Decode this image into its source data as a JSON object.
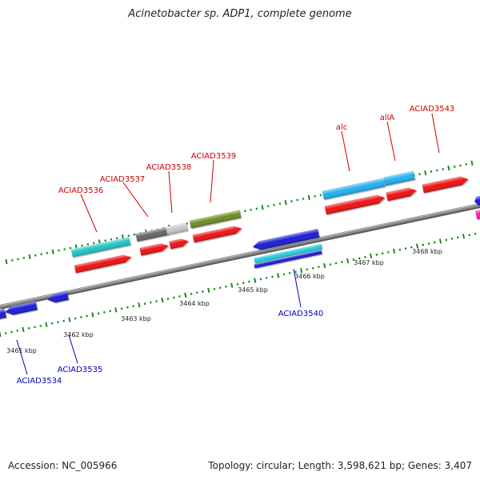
{
  "title": "Acinetobacter sp. ADP1, complete genome",
  "footer": {
    "accession": "Accession: NC_005966",
    "summary": "Topology: circular; Length: 3,598,621 bp; Genes: 3,407"
  },
  "colors": {
    "backbone": "#8a8a8a",
    "tick": "#1f8a1f",
    "forward_label": "#cc0000",
    "reverse_label": "#0000bb",
    "cds_red": "#ee1111",
    "cds_blue": "#1a1ad6",
    "cds_cyan": "#22ccdd",
    "cds_teal": "#1fc4c4",
    "cds_gray": "#666666",
    "cds_lightgray": "#c8c8c8",
    "cds_olive": "#6b8e23",
    "cds_sky": "#22b0f0",
    "cds_magenta": "#ee22aa"
  },
  "scale_labels": [
    "3461 kbp",
    "3462 kbp",
    "3463 kbp",
    "3464 kbp",
    "3465 kbp",
    "3466 kbp",
    "3467 kbp",
    "3468 kbp"
  ],
  "gene_labels": {
    "forward": [
      "ACIAD3536",
      "ACIAD3537",
      "ACIAD3538",
      "ACIAD3539",
      "alc",
      "allA",
      "ACIAD3543"
    ],
    "reverse": [
      "ACIAD3534",
      "ACIAD3535",
      "ACIAD3540"
    ]
  }
}
